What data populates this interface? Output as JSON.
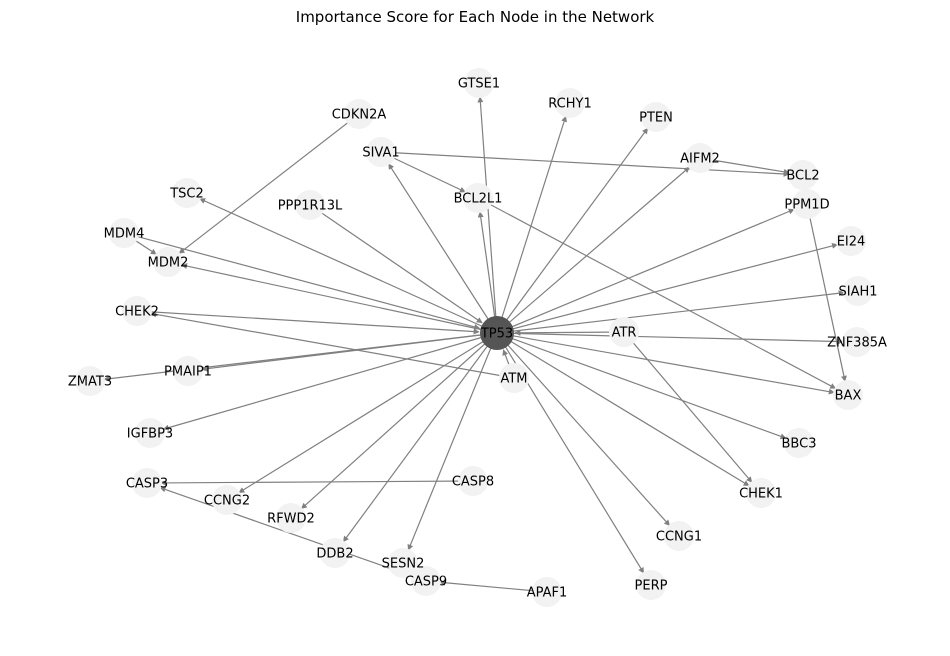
{
  "title": "Importance Score for Each Node in the Network",
  "colors": {
    "background": "#ffffff",
    "edge": "#808080",
    "node": "#f2f2f2",
    "hub_node": "#555555",
    "label": "#000000"
  },
  "chart_data": {
    "type": "network",
    "directed": true,
    "hub": "TP53",
    "nodes": [
      "TP53",
      "GTSE1",
      "RCHY1",
      "PTEN",
      "CDKN2A",
      "SIVA1",
      "AIFM2",
      "BCL2",
      "TSC2",
      "PPP1R13L",
      "BCL2L1",
      "PPM1D",
      "MDM4",
      "MDM2",
      "EI24",
      "SIAH1",
      "CHEK2",
      "ATR",
      "ZNF385A",
      "ZMAT3",
      "PMAIP1",
      "ATM",
      "BAX",
      "IGFBP3",
      "BBC3",
      "CASP3",
      "CASP8",
      "CHEK1",
      "CCNG2",
      "RFWD2",
      "CCNG1",
      "DDB2",
      "SESN2",
      "CASP9",
      "APAF1",
      "PERP"
    ],
    "edges": [
      [
        "TP53",
        "GTSE1"
      ],
      [
        "TP53",
        "RCHY1"
      ],
      [
        "TP53",
        "PTEN"
      ],
      [
        "TP53",
        "SIVA1"
      ],
      [
        "TP53",
        "AIFM2"
      ],
      [
        "TP53",
        "TSC2"
      ],
      [
        "TP53",
        "PPM1D"
      ],
      [
        "TP53",
        "MDM2"
      ],
      [
        "TP53",
        "EI24"
      ],
      [
        "TP53",
        "BAX"
      ],
      [
        "TP53",
        "IGFBP3"
      ],
      [
        "TP53",
        "CCNG2"
      ],
      [
        "TP53",
        "RFWD2"
      ],
      [
        "TP53",
        "DDB2"
      ],
      [
        "TP53",
        "SESN2"
      ],
      [
        "TP53",
        "CCNG1"
      ],
      [
        "TP53",
        "PERP"
      ],
      [
        "TP53",
        "CHEK1"
      ],
      [
        "TP53",
        "BBC3"
      ],
      [
        "TP53",
        "ZNF385A"
      ],
      [
        "TP53",
        "SIAH1"
      ],
      [
        "TP53",
        "PMAIP1"
      ],
      [
        "TP53",
        "ZMAT3"
      ],
      [
        "TP53",
        "BCL2L1"
      ],
      [
        "PPP1R13L",
        "TP53"
      ],
      [
        "CHEK2",
        "TP53"
      ],
      [
        "ATM",
        "TP53"
      ],
      [
        "ATR",
        "TP53"
      ],
      [
        "MDM4",
        "TP53"
      ],
      [
        "CDKN2A",
        "MDM2"
      ],
      [
        "MDM4",
        "MDM2"
      ],
      [
        "SIVA1",
        "BCL2"
      ],
      [
        "SIVA1",
        "BCL2L1"
      ],
      [
        "AIFM2",
        "BCL2"
      ],
      [
        "BCL2L1",
        "BAX"
      ],
      [
        "PPM1D",
        "BAX"
      ],
      [
        "ATR",
        "CHEK1"
      ],
      [
        "ATM",
        "CHEK2"
      ],
      [
        "CASP8",
        "CASP3"
      ],
      [
        "CASP9",
        "CASP3"
      ],
      [
        "APAF1",
        "CASP9"
      ]
    ]
  }
}
